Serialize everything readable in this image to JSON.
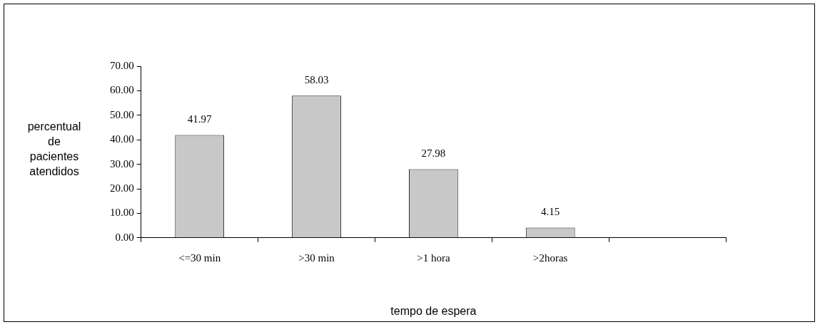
{
  "chart_data": {
    "type": "bar",
    "xlabel": "tempo de espera",
    "ylabel": "percentual\nde\npacientes\natendidos",
    "categories": [
      "<=30 min",
      ">30 min",
      ">1 hora",
      ">2horas",
      null
    ],
    "values": [
      41.97,
      58.03,
      27.98,
      4.15,
      null
    ],
    "color": "#c8c8c8",
    "ylim": [
      0,
      70
    ],
    "yticks": [
      {
        "value": 0,
        "label": "0.00"
      },
      {
        "value": 10,
        "label": "10.00"
      },
      {
        "value": 20,
        "label": "20.00"
      },
      {
        "value": 30,
        "label": "30.00"
      },
      {
        "value": 40,
        "label": "40.00"
      },
      {
        "value": 50,
        "label": "50.00"
      },
      {
        "value": 60,
        "label": "60.00"
      },
      {
        "value": 70,
        "label": "70.00"
      }
    ],
    "data_labels": true,
    "grid": false,
    "legend": false
  }
}
